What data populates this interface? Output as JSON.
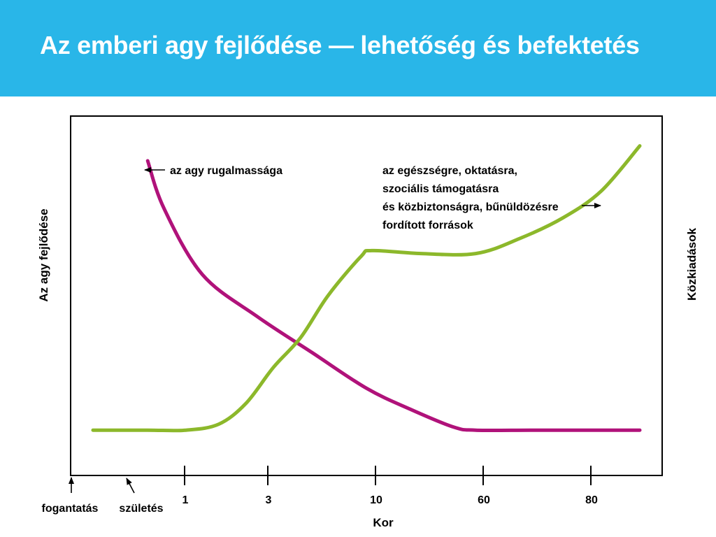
{
  "header": {
    "title": "Az emberi agy fejlődése — lehetőség és befektetés",
    "background": "#29b6e8"
  },
  "chart_data": {
    "type": "line",
    "title": "Az emberi agy fejlődése — lehetőség és befektetés",
    "xlabel": "Kor",
    "ylabel_left": "Az agy fejlődése",
    "ylabel_right": "Közkiadások",
    "x_ticks": [
      "fogantatás",
      "születés",
      "1",
      "3",
      "10",
      "60",
      "80"
    ],
    "annotations": {
      "plasticity": "az agy rugalmassága",
      "spending": [
        "az egészségre, oktatásra,",
        "szociális támogatásra",
        "és közbiztonságra, bűnüldözésre",
        "fordított források"
      ]
    },
    "series": [
      {
        "color": "#b0127a",
        "values": [
          [
            0.1,
            0.93
          ],
          [
            0.13,
            0.77
          ],
          [
            0.2,
            0.55
          ],
          [
            0.3,
            0.41
          ],
          [
            0.4,
            0.29
          ],
          [
            0.5,
            0.17
          ],
          [
            0.58,
            0.1
          ],
          [
            0.66,
            0.04
          ],
          [
            0.7,
            0.03
          ],
          [
            0.8,
            0.03
          ],
          [
            0.9,
            0.03
          ],
          [
            1.0,
            0.03
          ]
        ]
      },
      {
        "color": "#8cb82b",
        "values": [
          [
            0.0,
            0.03
          ],
          [
            0.1,
            0.03
          ],
          [
            0.17,
            0.03
          ],
          [
            0.23,
            0.05
          ],
          [
            0.28,
            0.12
          ],
          [
            0.33,
            0.24
          ],
          [
            0.38,
            0.34
          ],
          [
            0.43,
            0.48
          ],
          [
            0.49,
            0.61
          ],
          [
            0.51,
            0.63
          ],
          [
            0.6,
            0.62
          ],
          [
            0.7,
            0.62
          ],
          [
            0.78,
            0.67
          ],
          [
            0.86,
            0.74
          ],
          [
            0.93,
            0.83
          ],
          [
            1.0,
            0.98
          ]
        ]
      }
    ]
  }
}
